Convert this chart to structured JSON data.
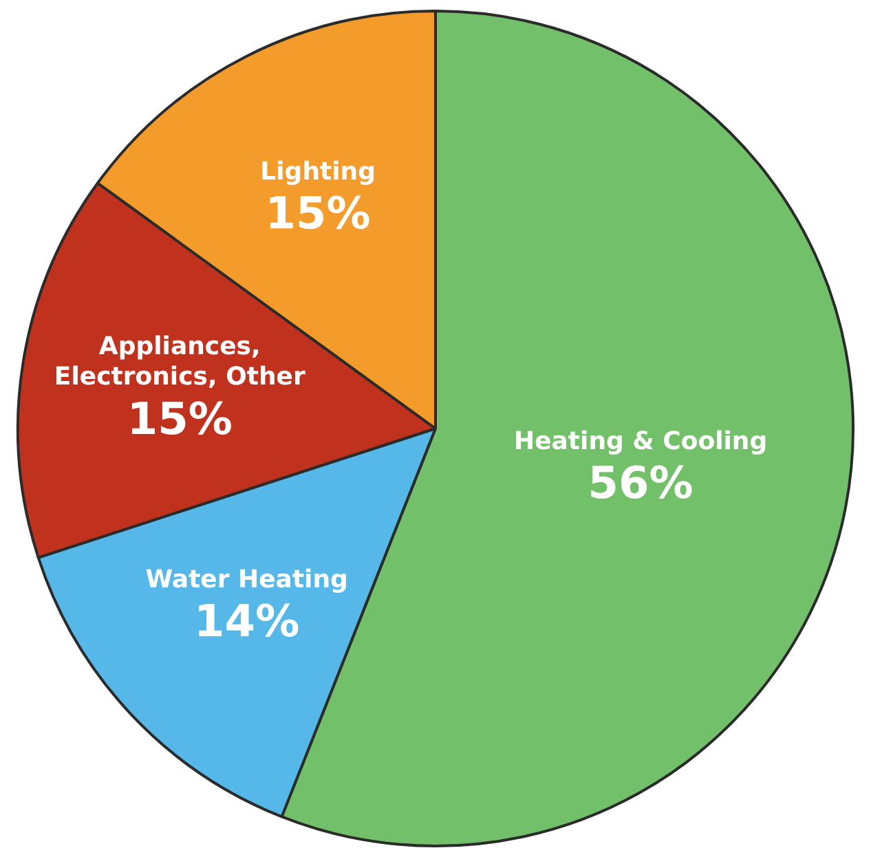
{
  "chart_data": {
    "type": "pie",
    "categories": [
      "Heating & Cooling",
      "Water Heating",
      "Appliances, Electronics, Other",
      "Lighting"
    ],
    "values": [
      56,
      14,
      15,
      15
    ],
    "colors": [
      "#72c069",
      "#55b8e8",
      "#c0321e",
      "#f39c2c"
    ],
    "value_labels": [
      "56%",
      "14%",
      "15%",
      "15%"
    ],
    "legend": false
  }
}
